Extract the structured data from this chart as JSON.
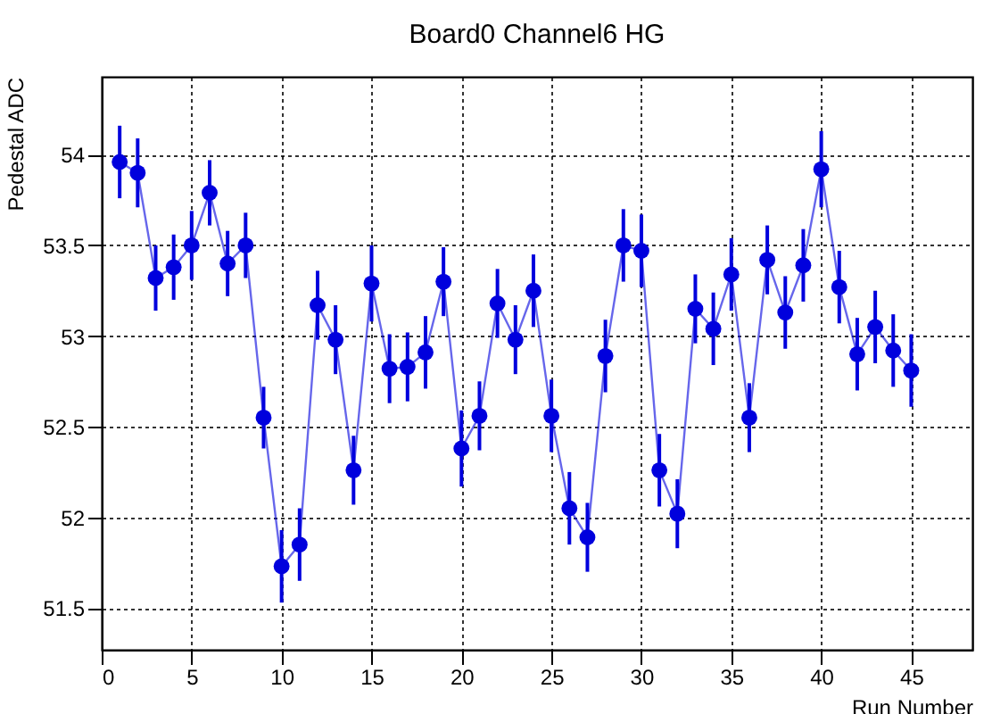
{
  "chart_data": {
    "type": "line",
    "title": "Board0 Channel6 HG",
    "xlabel": "Run Number",
    "ylabel": "Pedestal ADC",
    "x": [
      1,
      2,
      3,
      4,
      5,
      6,
      7,
      8,
      9,
      10,
      11,
      12,
      13,
      14,
      15,
      16,
      17,
      18,
      19,
      20,
      21,
      22,
      23,
      24,
      25,
      26,
      27,
      28,
      29,
      30,
      31,
      32,
      33,
      34,
      35,
      36,
      37,
      38,
      39,
      40,
      41,
      42,
      43,
      44,
      45
    ],
    "values": [
      53.96,
      53.9,
      53.32,
      53.38,
      53.5,
      53.79,
      53.4,
      53.5,
      52.55,
      51.73,
      51.85,
      53.17,
      52.98,
      52.26,
      53.29,
      52.82,
      52.83,
      52.91,
      53.3,
      52.38,
      52.56,
      53.18,
      52.98,
      53.25,
      52.56,
      52.05,
      51.89,
      52.89,
      53.5,
      53.47,
      52.26,
      52.02,
      53.15,
      53.04,
      53.34,
      52.55,
      53.42,
      53.13,
      53.39,
      53.92,
      53.27,
      52.9,
      53.05,
      52.92,
      52.81
    ],
    "errors": [
      0.2,
      0.19,
      0.18,
      0.18,
      0.19,
      0.18,
      0.18,
      0.18,
      0.17,
      0.2,
      0.2,
      0.19,
      0.19,
      0.19,
      0.21,
      0.19,
      0.19,
      0.2,
      0.19,
      0.21,
      0.19,
      0.19,
      0.19,
      0.2,
      0.2,
      0.2,
      0.19,
      0.2,
      0.2,
      0.2,
      0.2,
      0.19,
      0.19,
      0.2,
      0.2,
      0.19,
      0.19,
      0.2,
      0.2,
      0.21,
      0.2,
      0.2,
      0.2,
      0.2,
      0.2
    ],
    "color": "#0000dd",
    "marker": "circle",
    "line_style": "solid",
    "grid": true,
    "xlim": [
      0,
      48.4
    ],
    "ylim": [
      51.27,
      54.43
    ],
    "xticks": [
      0,
      5,
      10,
      15,
      20,
      25,
      30,
      35,
      40,
      45
    ],
    "yticks": [
      51.5,
      52,
      52.5,
      53,
      53.5,
      54
    ]
  }
}
